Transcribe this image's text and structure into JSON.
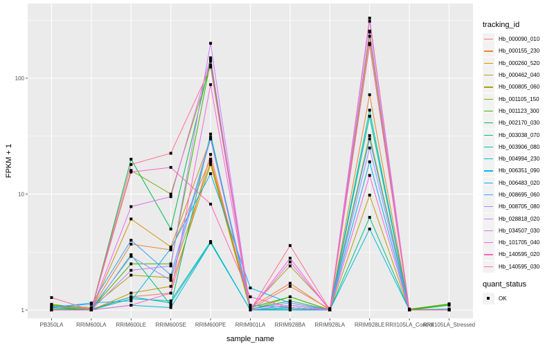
{
  "chart_data": {
    "type": "line",
    "title": "",
    "xlabel": "sample_name",
    "ylabel": "FPKM + 1",
    "yscale": "log10",
    "ylim": [
      0.9,
      420
    ],
    "yticks": [
      1,
      10,
      100
    ],
    "ytick_labels": [
      "1",
      "10",
      "100"
    ],
    "grid": true,
    "legend_position": "right",
    "categories": [
      "PB350LA",
      "RRIM600LA",
      "RRIM600LE",
      "RRIM600SE",
      "RRIM600PE",
      "RRIM901LA",
      "RRIM928BA",
      "RRIM928LA",
      "RRIM928LE",
      "RRII105LA_Control",
      "RRII105LA_Stressed"
    ],
    "series": [
      {
        "name": "Hb_000090_010",
        "color": "#F8766D",
        "values": [
          1.05,
          1.02,
          1.3,
          1.4,
          22,
          1.02,
          1.6,
          1.02,
          330,
          1.0,
          1.0
        ]
      },
      {
        "name": "Hb_000155_230",
        "color": "#EA8331",
        "values": [
          1.1,
          1.03,
          3.7,
          3.3,
          20,
          1.05,
          1.7,
          1.0,
          72,
          1.01,
          1.02
        ]
      },
      {
        "name": "Hb_000260_520",
        "color": "#D89000",
        "values": [
          1.02,
          1.0,
          6.1,
          3.5,
          30,
          1.0,
          1.1,
          1.0,
          250,
          1.0,
          1.0
        ]
      },
      {
        "name": "Hb_000462_040",
        "color": "#C09B00",
        "values": [
          1.0,
          1.0,
          1.4,
          1.6,
          18,
          1.0,
          1.05,
          1.0,
          9.8,
          1.0,
          1.0
        ]
      },
      {
        "name": "Hb_000805_060",
        "color": "#A3A500",
        "values": [
          1.1,
          1.05,
          2.0,
          1.9,
          19,
          1.03,
          2.4,
          1.03,
          32,
          1.02,
          1.13
        ]
      },
      {
        "name": "Hb_001105_150",
        "color": "#7CAE00",
        "values": [
          1.08,
          1.0,
          16,
          10,
          130,
          1.0,
          1.3,
          1.0,
          230,
          1.0,
          1.13
        ]
      },
      {
        "name": "Hb_001123_300",
        "color": "#39B600",
        "values": [
          1.12,
          1.02,
          2.5,
          2.5,
          140,
          1.05,
          1.3,
          1.0,
          47,
          1.01,
          1.12
        ]
      },
      {
        "name": "Hb_002170_030",
        "color": "#00BB4E",
        "values": [
          1.05,
          1.0,
          20,
          5.0,
          145,
          1.02,
          1.2,
          1.0,
          195,
          1.0,
          1.1
        ]
      },
      {
        "name": "Hb_003038_070",
        "color": "#00BF7D",
        "values": [
          1.02,
          1.0,
          3.0,
          1.1,
          33,
          1.0,
          1.1,
          1.0,
          6.3,
          1.0,
          1.0
        ]
      },
      {
        "name": "Hb_003906_080",
        "color": "#00C1A3",
        "values": [
          1.0,
          1.0,
          1.25,
          1.2,
          3.9,
          1.0,
          1.05,
          1.0,
          53,
          1.0,
          1.0
        ]
      },
      {
        "name": "Hb_004994_230",
        "color": "#00BFC4",
        "values": [
          1.0,
          1.0,
          1.3,
          1.15,
          3.8,
          1.0,
          1.02,
          1.0,
          47,
          1.0,
          1.0
        ]
      },
      {
        "name": "Hb_006351_090",
        "color": "#00BAE0",
        "values": [
          1.0,
          1.0,
          1.1,
          1.05,
          3.8,
          1.0,
          1.0,
          1.0,
          5.0,
          1.0,
          1.0
        ]
      },
      {
        "name": "Hb_006483_020",
        "color": "#00B0F6",
        "values": [
          1.05,
          1.15,
          1.2,
          3.4,
          15,
          1.55,
          1.15,
          1.0,
          19,
          1.0,
          1.02
        ]
      },
      {
        "name": "Hb_008695_060",
        "color": "#35A2FF",
        "values": [
          1.07,
          1.12,
          4.0,
          2.0,
          31,
          1.1,
          1.05,
          1.0,
          30,
          1.0,
          1.0
        ]
      },
      {
        "name": "Hb_008705_080",
        "color": "#9590FF",
        "values": [
          1.08,
          1.03,
          2.9,
          1.8,
          30,
          1.02,
          1.15,
          1.0,
          25,
          1.0,
          1.0
        ]
      },
      {
        "name": "Hb_028818_020",
        "color": "#C77CFF",
        "values": [
          1.0,
          1.0,
          2.2,
          2.4,
          200,
          1.0,
          1.1,
          1.0,
          310,
          1.0,
          1.0
        ]
      },
      {
        "name": "Hb_034507_030",
        "color": "#E76BF3",
        "values": [
          1.0,
          1.0,
          7.8,
          9.5,
          150,
          1.0,
          2.6,
          1.0,
          255,
          1.0,
          1.0
        ]
      },
      {
        "name": "Hb_101705_040",
        "color": "#FA62DB",
        "values": [
          1.0,
          1.0,
          1.1,
          1.4,
          88,
          1.0,
          2.8,
          1.0,
          14.5,
          1.0,
          1.0
        ]
      },
      {
        "name": "Hb_140595_020",
        "color": "#FF62BC",
        "values": [
          1.0,
          1.0,
          15.5,
          17,
          8.2,
          1.3,
          1.05,
          1.0,
          200,
          1.0,
          1.0
        ]
      },
      {
        "name": "Hb_140595_030",
        "color": "#FF6C91",
        "values": [
          1.28,
          1.0,
          18,
          22.5,
          125,
          1.0,
          3.6,
          1.0,
          195,
          1.0,
          1.0
        ]
      }
    ],
    "legends": [
      {
        "title": "tracking_id",
        "type": "line"
      },
      {
        "title": "quant_status",
        "type": "point",
        "entries": [
          {
            "label": "OK",
            "color": "#000000"
          }
        ]
      }
    ]
  }
}
